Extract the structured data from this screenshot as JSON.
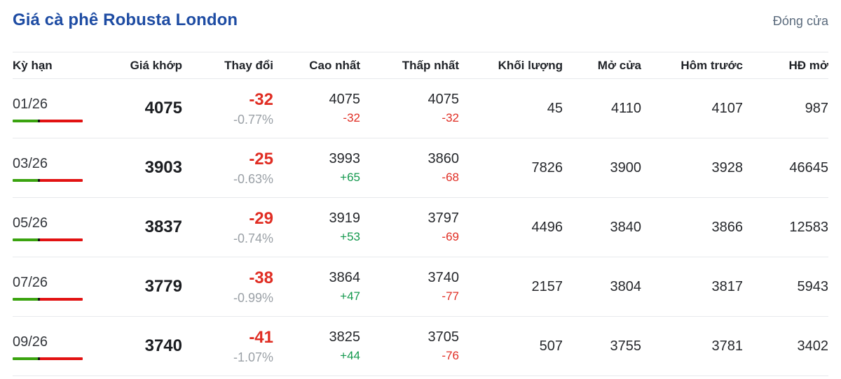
{
  "page": {
    "title": "Giá cà phê Robusta London",
    "status_label": "Đóng cửa"
  },
  "colors": {
    "accent_blue": "#1e4ca3",
    "negative_red": "#e02d23",
    "positive_green": "#13984d",
    "bar_green": "#3aa30f",
    "bar_red": "#e21212",
    "muted_gray": "#9aa0a6",
    "status_gray": "#5b6b7d",
    "row_border": "#e7e9ec"
  },
  "table": {
    "headers": [
      "Kỳ hạn",
      "Giá khớp",
      "Thay đổi",
      "Cao nhất",
      "Thấp nhất",
      "Khối lượng",
      "Mở cửa",
      "Hôm trước",
      "HĐ mở"
    ],
    "rows": [
      {
        "term": "01/26",
        "matched": "4075",
        "change": "-32",
        "change_pct": "-0.77%",
        "high": "4075",
        "high_delta": "-32",
        "low": "4075",
        "low_delta": "-32",
        "volume": "45",
        "open": "4110",
        "prev": "4107",
        "open_interest": "987"
      },
      {
        "term": "03/26",
        "matched": "3903",
        "change": "-25",
        "change_pct": "-0.63%",
        "high": "3993",
        "high_delta": "+65",
        "low": "3860",
        "low_delta": "-68",
        "volume": "7826",
        "open": "3900",
        "prev": "3928",
        "open_interest": "46645"
      },
      {
        "term": "05/26",
        "matched": "3837",
        "change": "-29",
        "change_pct": "-0.74%",
        "high": "3919",
        "high_delta": "+53",
        "low": "3797",
        "low_delta": "-69",
        "volume": "4496",
        "open": "3840",
        "prev": "3866",
        "open_interest": "12583"
      },
      {
        "term": "07/26",
        "matched": "3779",
        "change": "-38",
        "change_pct": "-0.99%",
        "high": "3864",
        "high_delta": "+47",
        "low": "3740",
        "low_delta": "-77",
        "volume": "2157",
        "open": "3804",
        "prev": "3817",
        "open_interest": "5943"
      },
      {
        "term": "09/26",
        "matched": "3740",
        "change": "-41",
        "change_pct": "-1.07%",
        "high": "3825",
        "high_delta": "+44",
        "low": "3705",
        "low_delta": "-76",
        "volume": "507",
        "open": "3755",
        "prev": "3781",
        "open_interest": "3402"
      }
    ]
  }
}
